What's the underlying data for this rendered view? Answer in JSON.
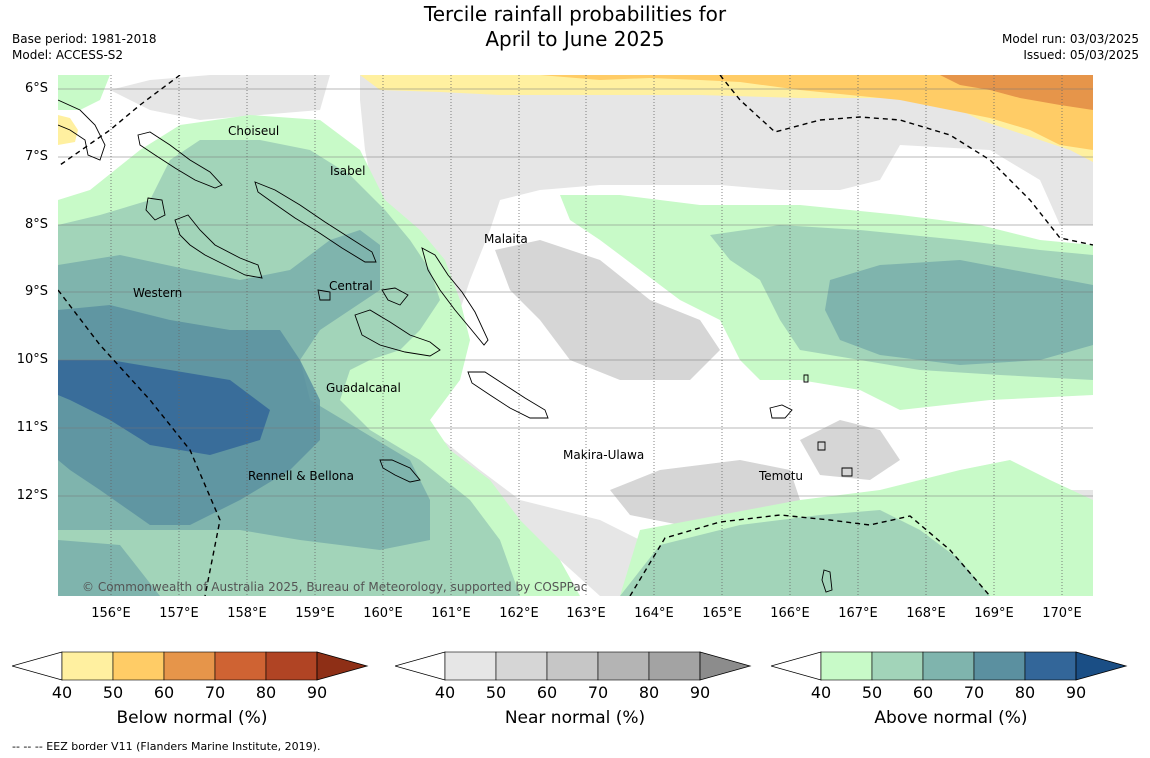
{
  "header": {
    "title_line1": "Tercile rainfall probabilities for",
    "title_line2": "April to June 2025",
    "base_period": "Base period: 1981-2018",
    "model": "Model: ACCESS-S2",
    "model_run": "Model run: 03/03/2025",
    "issued": "Issued: 05/03/2025"
  },
  "map": {
    "lat_labels": [
      "6°S",
      "7°S",
      "8°S",
      "9°S",
      "10°S",
      "11°S",
      "12°S"
    ],
    "lon_labels": [
      "156°E",
      "157°E",
      "158°E",
      "159°E",
      "160°E",
      "161°E",
      "162°E",
      "163°E",
      "164°E",
      "165°E",
      "166°E",
      "167°E",
      "168°E",
      "169°E",
      "170°E"
    ],
    "places": {
      "choiseul": "Choiseul",
      "isabel": "Isabel",
      "malaita": "Malaita",
      "western": "Western",
      "central": "Central",
      "guadalcanal": "Guadalcanal",
      "makira": "Makira-Ulawa",
      "rennell": "Rennell & Bellona",
      "temotu": "Temotu"
    },
    "copyright": "© Commonwealth of Australia 2025, Bureau of Meteorology, supported by COSPPac"
  },
  "legends": {
    "ticks": [
      "40",
      "50",
      "60",
      "70",
      "80",
      "90"
    ],
    "below": {
      "title": "Below normal (%)",
      "colors": [
        "#fff0a0",
        "#ffcc66",
        "#e6954a",
        "#cf6333",
        "#b04424",
        "#8e2f16"
      ]
    },
    "near": {
      "title": "Near normal (%)",
      "colors": [
        "#e6e6e6",
        "#d6d6d6",
        "#c6c6c6",
        "#b4b4b4",
        "#a3a3a3",
        "#8c8c8c"
      ]
    },
    "above": {
      "title": "Above normal (%)",
      "colors": [
        "#c8fac8",
        "#a2d4b9",
        "#7fb4ad",
        "#5b90a0",
        "#336699",
        "#1a4e85"
      ]
    }
  },
  "footer": {
    "eez_note": "-- -- -- EEZ border V11 (Flanders Marine Institute, 2019)."
  }
}
